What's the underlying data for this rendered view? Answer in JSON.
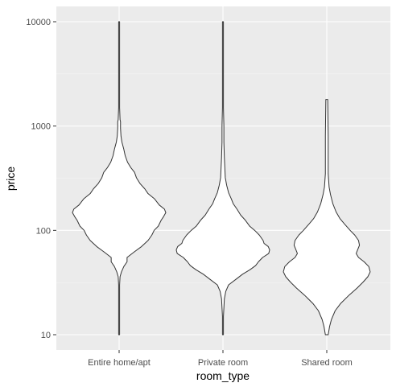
{
  "chart_data": {
    "type": "violin",
    "title": "",
    "xlabel": "room_type",
    "ylabel": "price",
    "y_scale": "log10",
    "ylim": [
      8,
      13000
    ],
    "y_ticks": [
      10,
      100,
      1000,
      10000
    ],
    "y_tick_labels": [
      "10",
      "100",
      "1000",
      "10000"
    ],
    "grid": true,
    "colors": {
      "panel_bg": "#ebebeb",
      "grid_major": "#ffffff",
      "grid_minor": "#f5f5f5",
      "violin_fill": "#ffffff",
      "violin_stroke": "#333333",
      "tick_label": "#4d4d4d",
      "tick_mark": "#333333"
    },
    "categories": [
      "Entire home/apt",
      "Private room",
      "Shared room"
    ],
    "series": [
      {
        "name": "Entire home/apt",
        "min": 10,
        "max": 10000,
        "density_profile": [
          [
            10,
            0.01
          ],
          [
            20,
            0.01
          ],
          [
            30,
            0.01
          ],
          [
            36,
            0.02
          ],
          [
            40,
            0.05
          ],
          [
            45,
            0.1
          ],
          [
            50,
            0.17
          ],
          [
            55,
            0.17
          ],
          [
            62,
            0.32
          ],
          [
            70,
            0.48
          ],
          [
            80,
            0.62
          ],
          [
            90,
            0.7
          ],
          [
            100,
            0.75
          ],
          [
            110,
            0.84
          ],
          [
            125,
            0.9
          ],
          [
            135,
            0.95
          ],
          [
            148,
            1.0
          ],
          [
            160,
            0.97
          ],
          [
            175,
            0.86
          ],
          [
            200,
            0.76
          ],
          [
            225,
            0.62
          ],
          [
            250,
            0.55
          ],
          [
            280,
            0.45
          ],
          [
            320,
            0.37
          ],
          [
            360,
            0.33
          ],
          [
            400,
            0.25
          ],
          [
            450,
            0.18
          ],
          [
            520,
            0.13
          ],
          [
            600,
            0.1
          ],
          [
            700,
            0.06
          ],
          [
            800,
            0.04
          ],
          [
            950,
            0.03
          ],
          [
            1100,
            0.03
          ],
          [
            1150,
            0.02
          ],
          [
            1500,
            0.01
          ],
          [
            10000,
            0.01
          ]
        ]
      },
      {
        "name": "Private room",
        "min": 10,
        "max": 10000,
        "density_profile": [
          [
            10,
            0.01
          ],
          [
            15,
            0.01
          ],
          [
            18,
            0.02
          ],
          [
            22,
            0.03
          ],
          [
            26,
            0.06
          ],
          [
            30,
            0.12
          ],
          [
            34,
            0.28
          ],
          [
            38,
            0.42
          ],
          [
            42,
            0.58
          ],
          [
            46,
            0.7
          ],
          [
            50,
            0.76
          ],
          [
            55,
            0.85
          ],
          [
            60,
            0.98
          ],
          [
            65,
            1.0
          ],
          [
            70,
            0.97
          ],
          [
            75,
            0.88
          ],
          [
            80,
            0.86
          ],
          [
            90,
            0.78
          ],
          [
            100,
            0.68
          ],
          [
            110,
            0.57
          ],
          [
            125,
            0.48
          ],
          [
            140,
            0.38
          ],
          [
            160,
            0.3
          ],
          [
            180,
            0.22
          ],
          [
            200,
            0.18
          ],
          [
            230,
            0.12
          ],
          [
            270,
            0.08
          ],
          [
            320,
            0.05
          ],
          [
            400,
            0.04
          ],
          [
            500,
            0.03
          ],
          [
            700,
            0.02
          ],
          [
            1000,
            0.02
          ],
          [
            1500,
            0.01
          ],
          [
            10000,
            0.01
          ]
        ]
      },
      {
        "name": "Shared room",
        "min": 10,
        "max": 1800,
        "density_profile": [
          [
            10,
            0.03
          ],
          [
            12,
            0.06
          ],
          [
            14,
            0.1
          ],
          [
            17,
            0.18
          ],
          [
            20,
            0.3
          ],
          [
            24,
            0.48
          ],
          [
            28,
            0.65
          ],
          [
            32,
            0.78
          ],
          [
            36,
            0.88
          ],
          [
            40,
            0.93
          ],
          [
            45,
            0.9
          ],
          [
            50,
            0.8
          ],
          [
            55,
            0.68
          ],
          [
            60,
            0.63
          ],
          [
            65,
            0.66
          ],
          [
            72,
            0.7
          ],
          [
            80,
            0.68
          ],
          [
            90,
            0.6
          ],
          [
            100,
            0.5
          ],
          [
            115,
            0.38
          ],
          [
            130,
            0.28
          ],
          [
            150,
            0.2
          ],
          [
            180,
            0.13
          ],
          [
            220,
            0.08
          ],
          [
            260,
            0.05
          ],
          [
            300,
            0.04
          ],
          [
            350,
            0.03
          ],
          [
            450,
            0.03
          ],
          [
            800,
            0.03
          ],
          [
            1800,
            0.02
          ]
        ]
      }
    ]
  }
}
